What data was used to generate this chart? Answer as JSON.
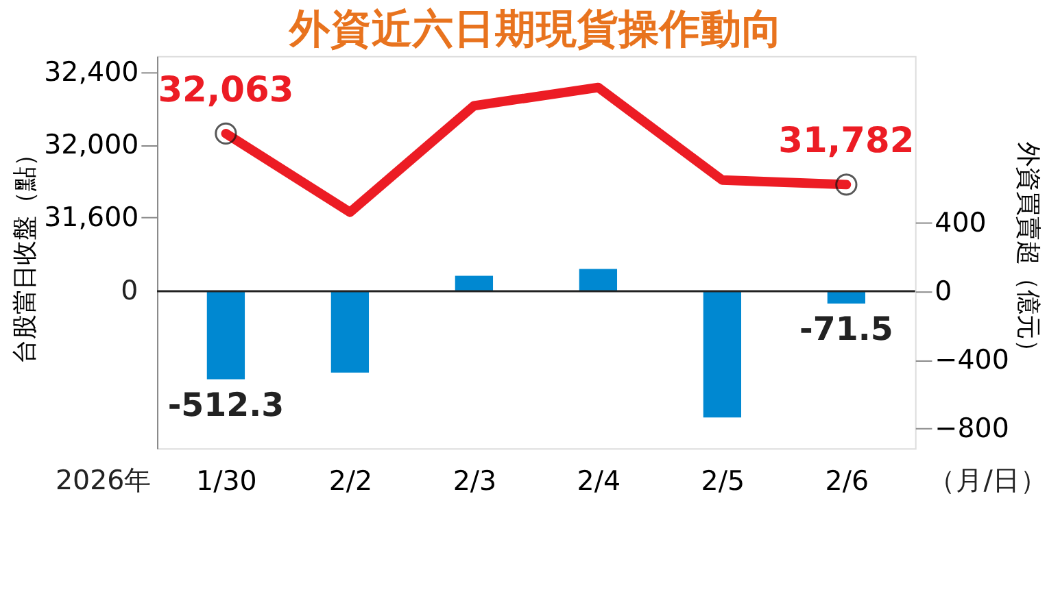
{
  "chart_data": {
    "type": "line",
    "title": "外資近六日期現貨操作動向",
    "categories": [
      "1/30",
      "2/2",
      "2/3",
      "2/4",
      "2/5",
      "2/6"
    ],
    "ylabel": "台股當日收盤（點）",
    "y2label": "外資買賣超（億元）",
    "ylim": [
      30330,
      32490
    ],
    "yticks": [
      {
        "value": 31600,
        "label": "31,600"
      },
      {
        "value": 32000,
        "label": "32,000"
      },
      {
        "value": 32400,
        "label": "32,400"
      }
    ],
    "y2lim": [
      -915,
      1370
    ],
    "y2ticks": [
      -800,
      -400,
      0,
      400
    ],
    "series": [
      {
        "color": "#ec1c24",
        "values": [
          32063,
          31630,
          32216,
          32317,
          31807,
          31782
        ],
        "value_labels": [
          "32,063",
          null,
          null,
          null,
          null,
          "31,782"
        ]
      },
      {
        "type": "bar",
        "axis": "y2",
        "color": "#0088d1",
        "values": [
          -512.3,
          -474,
          90,
          130,
          -735,
          -71.5
        ],
        "value_labels": [
          "-512.3",
          null,
          null,
          null,
          null,
          "-71.5"
        ]
      }
    ],
    "annotations": [
      "2026年",
      "（月/日）",
      "0"
    ]
  }
}
